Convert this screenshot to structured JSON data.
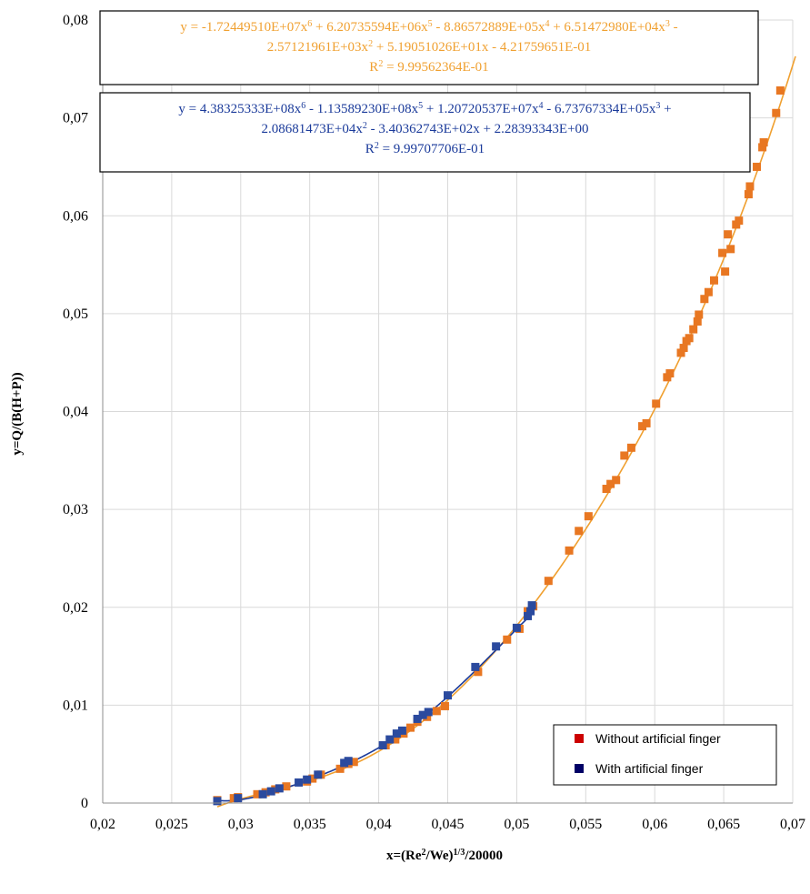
{
  "chart_data": {
    "type": "scatter",
    "xlabel_html": {
      "pre": "x=(Re",
      "sup1": "2",
      "mid": "/We)",
      "sup2": "1/3",
      "post": "/20000"
    },
    "ylabel": "y=Q/(B(H+P))",
    "xlim": [
      0.02,
      0.07
    ],
    "ylim": [
      0,
      0.08
    ],
    "x_ticks": [
      "0,02",
      "0,025",
      "0,03",
      "0,035",
      "0,04",
      "0,045",
      "0,05",
      "0,055",
      "0,06",
      "0,065",
      "0,07"
    ],
    "y_ticks": [
      "0",
      "0,01",
      "0,02",
      "0,03",
      "0,04",
      "0,05",
      "0,06",
      "0,07",
      "0,08"
    ],
    "grid": true,
    "legend_position": "bottom-right",
    "legend": [
      {
        "label": "Without artificial finger",
        "color": "#cc0000"
      },
      {
        "label": "With artificial finger",
        "color": "#000066"
      }
    ],
    "equations": [
      {
        "color": "#f0a030",
        "line1": [
          [
            "y = -1.72449510E+07x",
            "6"
          ],
          [
            " + 6.20735594E+06x",
            "5"
          ],
          [
            " - 8.86572889E+05x",
            "4"
          ],
          [
            " + 6.51472980E+04x",
            "3"
          ],
          [
            " -",
            ""
          ]
        ],
        "line2": [
          [
            "2.57121961E+03x",
            "2"
          ],
          [
            " + 5.19051026E+01x - 4.21759651E-01",
            ""
          ]
        ],
        "r2_label": "R",
        "r2_sup": "2",
        "r2_value": " = 9.99562364E-01"
      },
      {
        "color": "#1a3a9a",
        "line1": [
          [
            "y = 4.38325333E+08x",
            "6"
          ],
          [
            " - 1.13589230E+08x",
            "5"
          ],
          [
            " + 1.20720537E+07x",
            "4"
          ],
          [
            " - 6.73767334E+05x",
            "3"
          ],
          [
            " +",
            ""
          ]
        ],
        "line2": [
          [
            "2.08681473E+04x",
            "2"
          ],
          [
            " - 3.40362743E+02x + 2.28393343E+00",
            ""
          ]
        ],
        "r2_label": "R",
        "r2_sup": "2",
        "r2_value": " = 9.99707706E-01"
      }
    ],
    "series": [
      {
        "name": "Without artificial finger",
        "marker_color": "#e87722",
        "line_color": "#f0a030",
        "coeffs": [
          -0.421759651,
          51.9051026,
          -2571.21961,
          65147.298,
          -886572.889,
          6207355.94,
          -17244951.0
        ],
        "fit_range": [
          0.0283,
          0.0702
        ],
        "points": [
          [
            0.0283,
            0.0003
          ],
          [
            0.0295,
            0.0005
          ],
          [
            0.0298,
            0.0006
          ],
          [
            0.0312,
            0.0009
          ],
          [
            0.0318,
            0.0011
          ],
          [
            0.0325,
            0.0014
          ],
          [
            0.0333,
            0.0017
          ],
          [
            0.0348,
            0.0022
          ],
          [
            0.0352,
            0.0025
          ],
          [
            0.0358,
            0.0029
          ],
          [
            0.0372,
            0.0035
          ],
          [
            0.0378,
            0.004
          ],
          [
            0.0382,
            0.0042
          ],
          [
            0.0405,
            0.0059
          ],
          [
            0.0412,
            0.0065
          ],
          [
            0.0418,
            0.0071
          ],
          [
            0.0423,
            0.0077
          ],
          [
            0.0428,
            0.0083
          ],
          [
            0.0435,
            0.0088
          ],
          [
            0.0442,
            0.0094
          ],
          [
            0.0448,
            0.0099
          ],
          [
            0.0472,
            0.0134
          ],
          [
            0.0493,
            0.0167
          ],
          [
            0.0502,
            0.0178
          ],
          [
            0.0508,
            0.0196
          ],
          [
            0.0512,
            0.0201
          ],
          [
            0.0523,
            0.0227
          ],
          [
            0.0538,
            0.0258
          ],
          [
            0.0545,
            0.0278
          ],
          [
            0.0552,
            0.0293
          ],
          [
            0.0565,
            0.0321
          ],
          [
            0.0568,
            0.0326
          ],
          [
            0.0572,
            0.033
          ],
          [
            0.0578,
            0.0355
          ],
          [
            0.0583,
            0.0363
          ],
          [
            0.0591,
            0.0385
          ],
          [
            0.0594,
            0.0388
          ],
          [
            0.0601,
            0.0408
          ],
          [
            0.0609,
            0.0435
          ],
          [
            0.0611,
            0.0439
          ],
          [
            0.0619,
            0.046
          ],
          [
            0.0621,
            0.0465
          ],
          [
            0.0623,
            0.0472
          ],
          [
            0.0625,
            0.0475
          ],
          [
            0.0628,
            0.0484
          ],
          [
            0.0631,
            0.0492
          ],
          [
            0.0632,
            0.0499
          ],
          [
            0.0636,
            0.0515
          ],
          [
            0.0639,
            0.0522
          ],
          [
            0.0643,
            0.0534
          ],
          [
            0.0649,
            0.0562
          ],
          [
            0.0651,
            0.0543
          ],
          [
            0.0653,
            0.0581
          ],
          [
            0.0655,
            0.0566
          ],
          [
            0.0659,
            0.0591
          ],
          [
            0.0661,
            0.0595
          ],
          [
            0.0668,
            0.0622
          ],
          [
            0.0669,
            0.063
          ],
          [
            0.0674,
            0.065
          ],
          [
            0.0678,
            0.067
          ],
          [
            0.0679,
            0.0675
          ],
          [
            0.0688,
            0.0705
          ],
          [
            0.0691,
            0.0728
          ]
        ]
      },
      {
        "name": "With artificial finger",
        "marker_color": "#2b4a9e",
        "line_color": "#1a3a9a",
        "coeffs": [
          2.28393343,
          -340.362743,
          20868.1473,
          -673767.334,
          12072053.7,
          -113589230.0,
          438325333.0
        ],
        "fit_range": [
          0.0283,
          0.0512
        ],
        "points": [
          [
            0.0283,
            0.0002
          ],
          [
            0.0298,
            0.0005
          ],
          [
            0.0316,
            0.0009
          ],
          [
            0.0322,
            0.0012
          ],
          [
            0.0328,
            0.0015
          ],
          [
            0.0342,
            0.0021
          ],
          [
            0.0348,
            0.0024
          ],
          [
            0.0356,
            0.0029
          ],
          [
            0.0375,
            0.0041
          ],
          [
            0.0378,
            0.0043
          ],
          [
            0.0403,
            0.0059
          ],
          [
            0.0408,
            0.0065
          ],
          [
            0.0413,
            0.0071
          ],
          [
            0.0417,
            0.0074
          ],
          [
            0.0428,
            0.0086
          ],
          [
            0.0432,
            0.009
          ],
          [
            0.0436,
            0.0093
          ],
          [
            0.045,
            0.011
          ],
          [
            0.047,
            0.0139
          ],
          [
            0.0485,
            0.016
          ],
          [
            0.05,
            0.0179
          ],
          [
            0.0508,
            0.0191
          ],
          [
            0.051,
            0.0196
          ],
          [
            0.0511,
            0.0202
          ]
        ]
      }
    ]
  }
}
